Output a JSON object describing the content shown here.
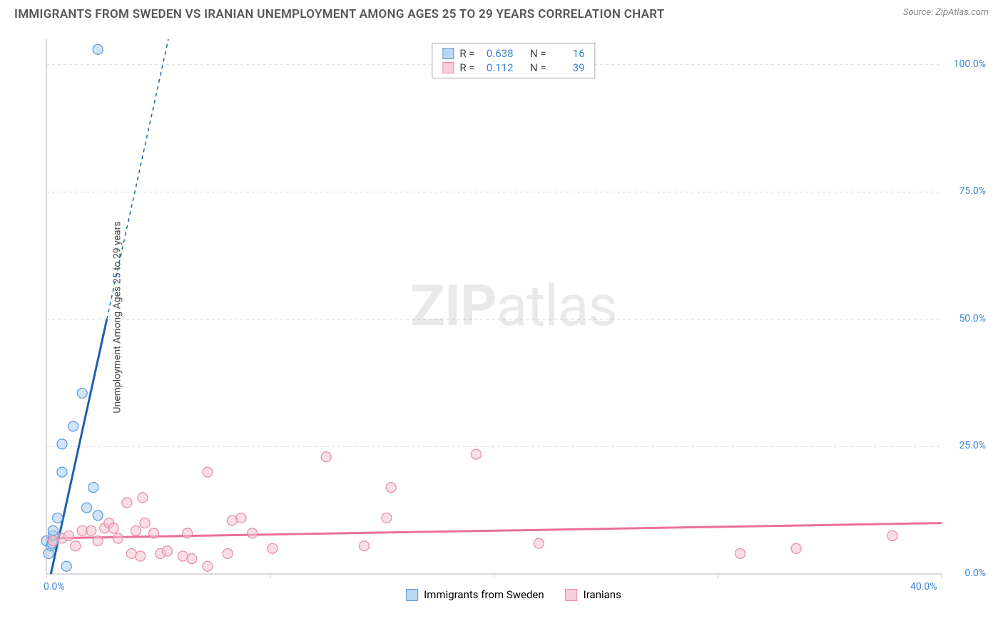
{
  "title": "IMMIGRANTS FROM SWEDEN VS IRANIAN UNEMPLOYMENT AMONG AGES 25 TO 29 YEARS CORRELATION CHART",
  "source": "Source: ZipAtlas.com",
  "y_axis_label": "Unemployment Among Ages 25 to 29 years",
  "watermark": {
    "bold": "ZIP",
    "rest": "atlas"
  },
  "chart": {
    "type": "scatter",
    "background_color": "#ffffff",
    "grid_color": "#d9d9d9",
    "axis_color": "#cccccc",
    "tick_label_color": "#3b82d6",
    "xlim": [
      0,
      40
    ],
    "ylim": [
      0,
      105
    ],
    "x_ticks": [
      0,
      10,
      20,
      30,
      40
    ],
    "x_tick_labels": [
      "0.0%",
      "",
      "",
      "",
      "40.0%"
    ],
    "y_ticks": [
      0,
      25,
      50,
      75,
      100
    ],
    "y_tick_labels": [
      "0.0%",
      "25.0%",
      "50.0%",
      "75.0%",
      "100.0%"
    ],
    "marker_radius": 7,
    "marker_opacity": 0.55,
    "series": [
      {
        "id": "sweden",
        "label": "Immigrants from Sweden",
        "color_fill": "#a9cdf0",
        "color_stroke": "#5a99d8",
        "swatch_fill": "#bcd7f2",
        "swatch_border": "#5a99d8",
        "R": "0.638",
        "N": "16",
        "trend": {
          "slope": 20.0,
          "intercept": -4.0,
          "color": "#1f5fb0",
          "width": 3,
          "solid_xmax": 2.7
        },
        "points": [
          [
            0.0,
            6.5
          ],
          [
            0.1,
            4.0
          ],
          [
            0.2,
            5.5
          ],
          [
            0.25,
            6.0
          ],
          [
            0.3,
            7.5
          ],
          [
            0.5,
            11.0
          ],
          [
            0.9,
            1.5
          ],
          [
            0.7,
            20.0
          ],
          [
            0.7,
            25.5
          ],
          [
            1.2,
            29.0
          ],
          [
            1.6,
            35.5
          ],
          [
            1.8,
            13.0
          ],
          [
            2.1,
            17.0
          ],
          [
            2.3,
            11.5
          ],
          [
            2.3,
            103.0
          ],
          [
            0.3,
            8.5
          ]
        ]
      },
      {
        "id": "iranians",
        "label": "Iranians",
        "color_fill": "#f4c3d0",
        "color_stroke": "#e88aa8",
        "swatch_fill": "#f7cfda",
        "swatch_border": "#e88aa8",
        "R": "0.112",
        "N": "39",
        "trend": {
          "slope": 0.075,
          "intercept": 7.0,
          "color": "#ec6f99",
          "width": 3,
          "solid_xmax": 40
        },
        "points": [
          [
            0.3,
            6.5
          ],
          [
            0.7,
            7.0
          ],
          [
            1.0,
            7.5
          ],
          [
            1.3,
            5.5
          ],
          [
            1.6,
            8.5
          ],
          [
            2.0,
            8.5
          ],
          [
            2.3,
            6.5
          ],
          [
            2.6,
            9.0
          ],
          [
            2.8,
            10.0
          ],
          [
            3.0,
            9.0
          ],
          [
            3.2,
            7.0
          ],
          [
            3.6,
            14.0
          ],
          [
            3.8,
            4.0
          ],
          [
            4.0,
            8.5
          ],
          [
            4.2,
            3.5
          ],
          [
            4.3,
            15.0
          ],
          [
            4.4,
            10.0
          ],
          [
            4.8,
            8.0
          ],
          [
            5.1,
            4.0
          ],
          [
            5.4,
            4.5
          ],
          [
            6.1,
            3.5
          ],
          [
            6.3,
            8.0
          ],
          [
            6.5,
            3.0
          ],
          [
            7.2,
            20.0
          ],
          [
            7.2,
            1.5
          ],
          [
            8.1,
            4.0
          ],
          [
            8.3,
            10.5
          ],
          [
            8.7,
            11.0
          ],
          [
            9.2,
            8.0
          ],
          [
            10.1,
            5.0
          ],
          [
            12.5,
            23.0
          ],
          [
            14.2,
            5.5
          ],
          [
            15.2,
            11.0
          ],
          [
            15.4,
            17.0
          ],
          [
            19.2,
            23.5
          ],
          [
            22.0,
            6.0
          ],
          [
            31.0,
            4.0
          ],
          [
            33.5,
            5.0
          ],
          [
            37.8,
            7.5
          ]
        ]
      }
    ]
  },
  "stats_legend": {
    "R_label": "R =",
    "N_label": "N ="
  },
  "bottom_legend": {}
}
